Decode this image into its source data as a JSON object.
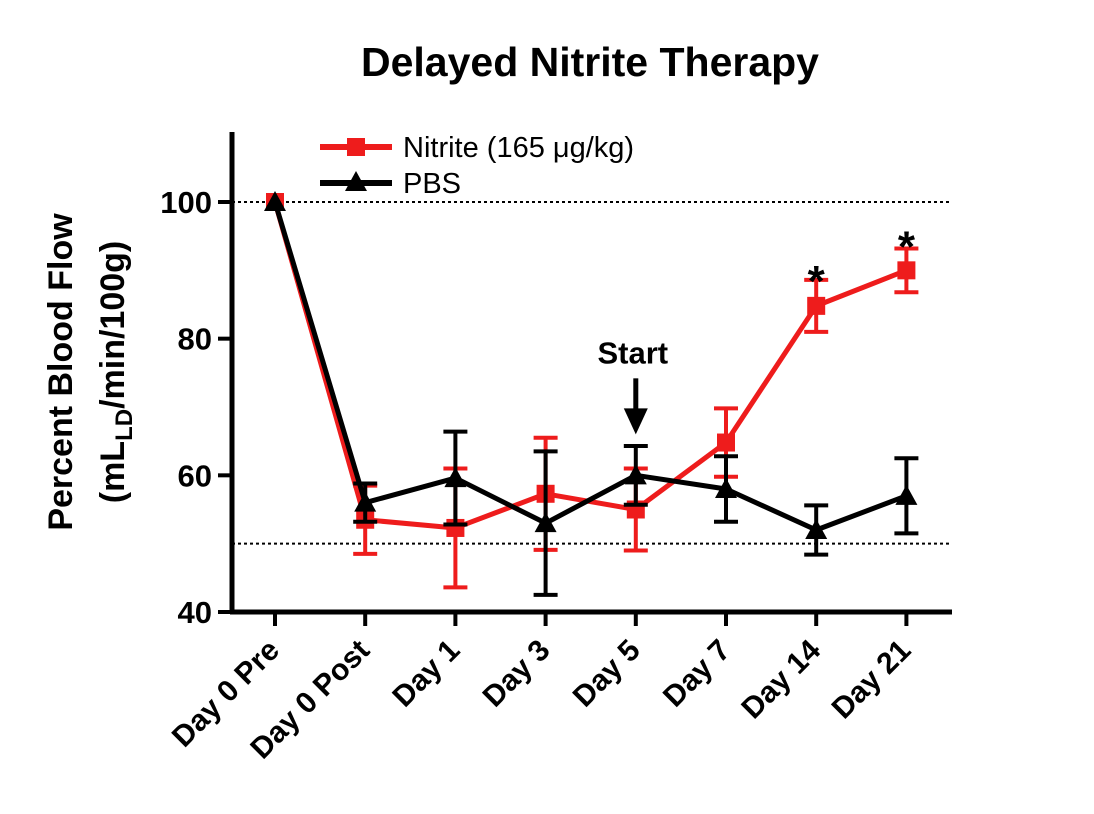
{
  "chart_data": {
    "type": "line",
    "title": "Delayed Nitrite Therapy",
    "ylabel_line1": "Percent Blood Flow",
    "ylabel_line2": {
      "prefix": "(mL",
      "subscript": "LD",
      "suffix": "/min/100g)"
    },
    "xlabel": "",
    "categories": [
      "Day 0 Pre",
      "Day 0 Post",
      "Day 1",
      "Day 3",
      "Day 5",
      "Day 7",
      "Day 14",
      "Day 21"
    ],
    "ylim": [
      40,
      110
    ],
    "yticks": [
      40,
      60,
      80,
      100
    ],
    "reference_lines": [
      100,
      50
    ],
    "series": [
      {
        "name": "Nitrite (165 μg/kg)",
        "color": "#ee1c1c",
        "marker": "square",
        "values": [
          100,
          53.5,
          52.3,
          57.3,
          55,
          64.8,
          84.8,
          90
        ],
        "error": [
          0,
          5,
          8.7,
          8.2,
          6,
          5,
          3.8,
          3.2
        ]
      },
      {
        "name": "PBS",
        "color": "#000000",
        "marker": "triangle",
        "values": [
          100,
          56,
          59.6,
          53,
          60,
          58,
          52,
          57
        ],
        "error": [
          0,
          2.8,
          6.8,
          10.5,
          4.3,
          4.8,
          3.6,
          5.5
        ]
      }
    ],
    "annotations": [
      {
        "text": "Start",
        "category": "Day 5",
        "y": 78,
        "arrow_to": 66
      },
      {
        "text": "*",
        "category": "Day 14",
        "y": 89.5
      },
      {
        "text": "*",
        "category": "Day 21",
        "y": 94.5
      }
    ],
    "legend_position": "top-left",
    "grid": false
  }
}
